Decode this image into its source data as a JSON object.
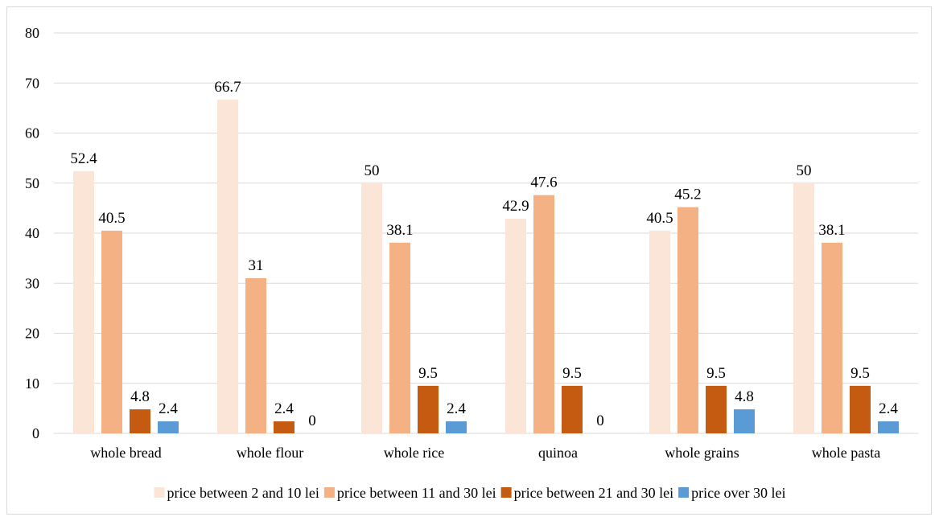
{
  "chart_data": {
    "type": "bar",
    "title": "",
    "xlabel": "",
    "ylabel": "",
    "ylim": [
      0,
      80
    ],
    "yticks": [
      0,
      10,
      20,
      30,
      40,
      50,
      60,
      70,
      80
    ],
    "grid": true,
    "legend_position": "bottom",
    "categories": [
      "whole bread",
      "whole flour",
      "whole rice",
      "quinoa",
      "whole grains",
      "whole pasta"
    ],
    "series": [
      {
        "name": "price between 2  and 10 lei",
        "color": "#fbe5d6",
        "values": [
          52.4,
          66.7,
          50,
          42.9,
          40.5,
          50
        ]
      },
      {
        "name": "price between  11 and 30 lei",
        "color": "#f4b183",
        "values": [
          40.5,
          31,
          38.1,
          47.6,
          45.2,
          38.1
        ]
      },
      {
        "name": "price between 21 and 30 lei",
        "color": "#c55a11",
        "values": [
          4.8,
          2.4,
          9.5,
          9.5,
          9.5,
          9.5
        ]
      },
      {
        "name": "price over 30 lei",
        "color": "#5b9bd5",
        "values": [
          2.4,
          0,
          2.4,
          0,
          4.8,
          2.4
        ]
      }
    ]
  }
}
